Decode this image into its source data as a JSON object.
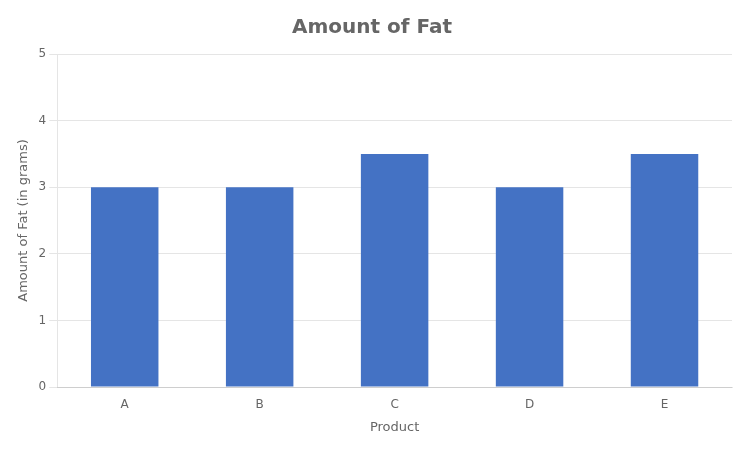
{
  "chart_data": {
    "type": "bar",
    "title": "Amount of Fat",
    "xlabel": "Product",
    "ylabel": "Amount of Fat (in grams)",
    "categories": [
      "A",
      "B",
      "C",
      "D",
      "E"
    ],
    "values": [
      3.0,
      3.0,
      3.5,
      3.0,
      3.5
    ],
    "color": "#4472C4",
    "ylim": [
      0,
      5
    ],
    "yticks": [
      0,
      1,
      2,
      3,
      4,
      5
    ],
    "grid": true
  }
}
